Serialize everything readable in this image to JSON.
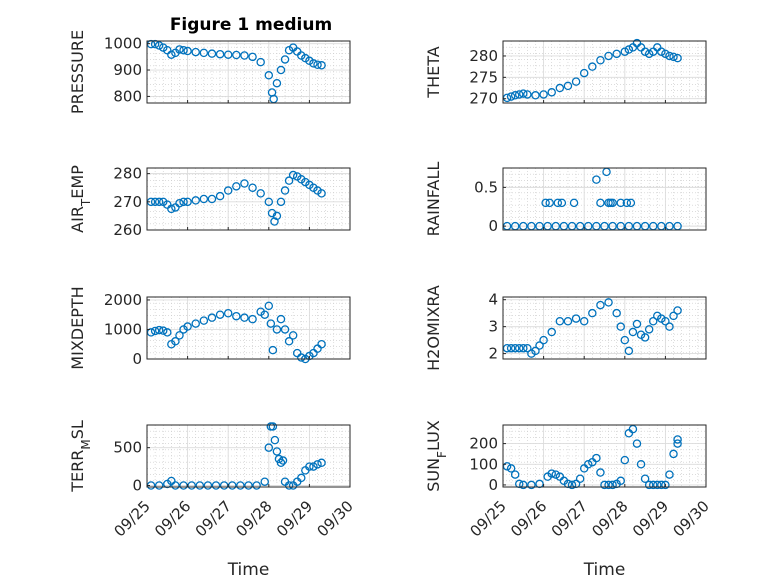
{
  "figure_title": "Figure 1 medium",
  "marker_color": "#0072BD",
  "chart_data": [
    {
      "type": "scatter",
      "ylabel": "PRESSURE",
      "ylim": [
        775,
        1010
      ],
      "yticks": [
        {
          "value": 800,
          "label": "800"
        },
        {
          "value": 900,
          "label": "900"
        },
        {
          "value": 1000,
          "label": "1000"
        }
      ],
      "xlim": [
        0,
        5
      ],
      "xticks": [
        {
          "value": 0,
          "label": "09/25"
        },
        {
          "value": 1,
          "label": "09/26"
        },
        {
          "value": 2,
          "label": "09/27"
        },
        {
          "value": 3,
          "label": "09/28"
        },
        {
          "value": 4,
          "label": "09/29"
        },
        {
          "value": 5,
          "label": "09/30"
        }
      ],
      "xlabel": "",
      "grid": true,
      "series": [
        {
          "x": [
            0.1,
            0.2,
            0.3,
            0.4,
            0.5,
            0.6,
            0.7,
            0.8,
            0.9,
            1.0,
            1.2,
            1.4,
            1.6,
            1.8,
            2.0,
            2.2,
            2.4,
            2.6,
            2.8,
            3.0,
            3.08,
            3.12,
            3.2,
            3.3,
            3.4,
            3.5,
            3.6,
            3.7,
            3.8,
            3.9,
            4.0,
            4.1,
            4.2,
            4.3
          ],
          "y": [
            998,
            998,
            993,
            985,
            975,
            958,
            965,
            978,
            975,
            972,
            968,
            965,
            962,
            960,
            958,
            957,
            955,
            950,
            930,
            880,
            815,
            790,
            850,
            900,
            940,
            975,
            985,
            970,
            955,
            945,
            935,
            925,
            920,
            918
          ]
        }
      ]
    },
    {
      "type": "scatter",
      "ylabel": "THETA",
      "ylim": [
        269,
        283.5
      ],
      "yticks": [
        {
          "value": 270,
          "label": "270"
        },
        {
          "value": 275,
          "label": "275"
        },
        {
          "value": 280,
          "label": "280"
        }
      ],
      "xlim": [
        0,
        5
      ],
      "xticks": [
        {
          "value": 0,
          "label": "09/25"
        },
        {
          "value": 1,
          "label": "09/26"
        },
        {
          "value": 2,
          "label": "09/27"
        },
        {
          "value": 3,
          "label": "09/28"
        },
        {
          "value": 4,
          "label": "09/29"
        },
        {
          "value": 5,
          "label": "09/30"
        }
      ],
      "xlabel": "",
      "grid": true,
      "series": [
        {
          "x": [
            0.1,
            0.2,
            0.3,
            0.4,
            0.5,
            0.6,
            0.8,
            1.0,
            1.2,
            1.4,
            1.6,
            1.8,
            2.0,
            2.2,
            2.4,
            2.6,
            2.8,
            3.0,
            3.1,
            3.2,
            3.3,
            3.4,
            3.5,
            3.6,
            3.7,
            3.8,
            3.9,
            4.0,
            4.1,
            4.2,
            4.3
          ],
          "y": [
            270.2,
            270.5,
            270.8,
            271,
            271.2,
            271,
            270.8,
            271,
            271.5,
            272.5,
            273,
            274,
            276,
            277.5,
            279,
            280,
            280.5,
            281,
            281.5,
            282,
            283,
            282,
            281,
            280.5,
            281,
            282,
            281,
            280.5,
            280,
            279.8,
            279.5
          ]
        }
      ]
    },
    {
      "type": "scatter",
      "ylabel": "AIR_TEMP",
      "ylim": [
        260,
        282
      ],
      "yticks": [
        {
          "value": 260,
          "label": "260"
        },
        {
          "value": 270,
          "label": "270"
        },
        {
          "value": 280,
          "label": "280"
        }
      ],
      "xlim": [
        0,
        5
      ],
      "xticks": [
        {
          "value": 0,
          "label": "09/25"
        },
        {
          "value": 1,
          "label": "09/26"
        },
        {
          "value": 2,
          "label": "09/27"
        },
        {
          "value": 3,
          "label": "09/28"
        },
        {
          "value": 4,
          "label": "09/29"
        },
        {
          "value": 5,
          "label": "09/30"
        }
      ],
      "xlabel": "",
      "grid": true,
      "series": [
        {
          "x": [
            0.1,
            0.2,
            0.3,
            0.4,
            0.5,
            0.6,
            0.7,
            0.8,
            0.9,
            1.0,
            1.2,
            1.4,
            1.6,
            1.8,
            2.0,
            2.2,
            2.4,
            2.6,
            2.8,
            3.0,
            3.08,
            3.14,
            3.2,
            3.3,
            3.4,
            3.5,
            3.6,
            3.7,
            3.8,
            3.9,
            4.0,
            4.1,
            4.2,
            4.3
          ],
          "y": [
            270,
            270,
            270,
            270,
            269,
            267.5,
            268,
            269.5,
            270,
            270,
            270.5,
            271,
            271,
            272,
            274,
            275.5,
            276.5,
            275,
            273,
            270,
            266,
            263,
            265,
            270,
            274,
            277.5,
            279.5,
            279,
            278,
            277,
            276,
            275,
            274,
            273
          ]
        }
      ]
    },
    {
      "type": "scatter",
      "ylabel": "RAINFALL",
      "ylim": [
        -0.05,
        0.75
      ],
      "yticks": [
        {
          "value": 0,
          "label": "0"
        },
        {
          "value": 0.5,
          "label": "0.5"
        }
      ],
      "xlim": [
        0,
        5
      ],
      "xticks": [
        {
          "value": 0,
          "label": "09/25"
        },
        {
          "value": 1,
          "label": "09/26"
        },
        {
          "value": 2,
          "label": "09/27"
        },
        {
          "value": 3,
          "label": "09/28"
        },
        {
          "value": 4,
          "label": "09/29"
        },
        {
          "value": 5,
          "label": "09/30"
        }
      ],
      "xlabel": "",
      "grid": true,
      "series": [
        {
          "x": [
            0.1,
            0.3,
            0.5,
            0.7,
            0.9,
            1.1,
            1.3,
            1.5,
            1.7,
            1.9,
            2.1,
            2.3,
            2.5,
            2.7,
            2.9,
            3.1,
            3.3,
            3.5,
            3.7,
            3.9,
            4.1,
            4.3,
            1.05,
            1.15,
            1.35,
            1.45,
            1.75,
            2.3,
            2.4,
            2.55,
            2.6,
            2.65,
            2.7,
            2.9,
            3.05,
            3.15
          ],
          "y": [
            0,
            0,
            0,
            0,
            0,
            0,
            0,
            0,
            0,
            0,
            0,
            0,
            0,
            0,
            0,
            0,
            0,
            0,
            0,
            0,
            0,
            0,
            0.3,
            0.3,
            0.3,
            0.3,
            0.3,
            0.6,
            0.3,
            0.7,
            0.3,
            0.3,
            0.3,
            0.3,
            0.3,
            0.3
          ]
        }
      ]
    },
    {
      "type": "scatter",
      "ylabel": "MIXDEPTH",
      "ylim": [
        0,
        2100
      ],
      "yticks": [
        {
          "value": 0,
          "label": "0"
        },
        {
          "value": 1000,
          "label": "1000"
        },
        {
          "value": 2000,
          "label": "2000"
        }
      ],
      "xlim": [
        0,
        5
      ],
      "xticks": [
        {
          "value": 0,
          "label": "09/25"
        },
        {
          "value": 1,
          "label": "09/26"
        },
        {
          "value": 2,
          "label": "09/27"
        },
        {
          "value": 3,
          "label": "09/28"
        },
        {
          "value": 4,
          "label": "09/29"
        },
        {
          "value": 5,
          "label": "09/30"
        }
      ],
      "xlabel": "",
      "grid": true,
      "series": [
        {
          "x": [
            0.1,
            0.2,
            0.3,
            0.4,
            0.5,
            0.6,
            0.7,
            0.8,
            0.9,
            1.0,
            1.2,
            1.4,
            1.6,
            1.8,
            2.0,
            2.2,
            2.4,
            2.6,
            2.8,
            2.9,
            3.0,
            3.05,
            3.1,
            3.2,
            3.3,
            3.4,
            3.5,
            3.6,
            3.7,
            3.8,
            3.9,
            4.0,
            4.1,
            4.2,
            4.3
          ],
          "y": [
            900,
            950,
            980,
            960,
            900,
            500,
            600,
            800,
            1000,
            1100,
            1200,
            1300,
            1400,
            1500,
            1550,
            1450,
            1400,
            1350,
            1600,
            1500,
            1800,
            1200,
            300,
            1000,
            1350,
            1000,
            600,
            800,
            200,
            50,
            0,
            100,
            200,
            350,
            500
          ]
        }
      ]
    },
    {
      "type": "scatter",
      "ylabel": "H2OMIXRA",
      "ylim": [
        1.8,
        4.1
      ],
      "yticks": [
        {
          "value": 2,
          "label": "2"
        },
        {
          "value": 3,
          "label": "3"
        },
        {
          "value": 4,
          "label": "4"
        }
      ],
      "xlim": [
        0,
        5
      ],
      "xticks": [
        {
          "value": 0,
          "label": "09/25"
        },
        {
          "value": 1,
          "label": "09/26"
        },
        {
          "value": 2,
          "label": "09/27"
        },
        {
          "value": 3,
          "label": "09/28"
        },
        {
          "value": 4,
          "label": "09/29"
        },
        {
          "value": 5,
          "label": "09/30"
        }
      ],
      "xlabel": "",
      "grid": true,
      "series": [
        {
          "x": [
            0.1,
            0.2,
            0.3,
            0.4,
            0.5,
            0.6,
            0.7,
            0.8,
            0.9,
            1.0,
            1.2,
            1.4,
            1.6,
            1.8,
            2.0,
            2.2,
            2.4,
            2.6,
            2.8,
            2.9,
            3.0,
            3.1,
            3.2,
            3.3,
            3.4,
            3.5,
            3.6,
            3.7,
            3.8,
            3.9,
            4.0,
            4.1,
            4.2,
            4.3
          ],
          "y": [
            2.2,
            2.2,
            2.2,
            2.2,
            2.2,
            2.2,
            2.0,
            2.1,
            2.3,
            2.5,
            2.8,
            3.2,
            3.2,
            3.3,
            3.2,
            3.5,
            3.8,
            3.9,
            3.5,
            3.0,
            2.5,
            2.1,
            2.8,
            3.1,
            2.7,
            2.6,
            2.9,
            3.2,
            3.4,
            3.3,
            3.2,
            3.0,
            3.4,
            3.6
          ]
        }
      ]
    },
    {
      "type": "scatter",
      "ylabel": "TERR_MSL",
      "ylim": [
        -20,
        800
      ],
      "yticks": [
        {
          "value": 0,
          "label": "0"
        },
        {
          "value": 500,
          "label": "500"
        }
      ],
      "xlim": [
        0,
        5
      ],
      "xticks": [
        {
          "value": 0,
          "label": "09/25"
        },
        {
          "value": 1,
          "label": "09/26"
        },
        {
          "value": 2,
          "label": "09/27"
        },
        {
          "value": 3,
          "label": "09/28"
        },
        {
          "value": 4,
          "label": "09/29"
        },
        {
          "value": 5,
          "label": "09/30"
        }
      ],
      "xlabel": "Time",
      "grid": true,
      "series": [
        {
          "x": [
            0.1,
            0.3,
            0.5,
            0.6,
            0.7,
            0.9,
            1.1,
            1.3,
            1.5,
            1.7,
            1.9,
            2.1,
            2.3,
            2.5,
            2.7,
            2.9,
            3.0,
            3.05,
            3.1,
            3.15,
            3.2,
            3.25,
            3.3,
            3.35,
            3.4,
            3.5,
            3.6,
            3.7,
            3.8,
            3.9,
            4.0,
            4.1,
            4.2,
            4.3
          ],
          "y": [
            0,
            0,
            20,
            60,
            0,
            0,
            0,
            0,
            0,
            0,
            0,
            0,
            0,
            0,
            0,
            50,
            500,
            780,
            780,
            600,
            450,
            350,
            300,
            330,
            50,
            0,
            0,
            50,
            100,
            200,
            250,
            250,
            280,
            300
          ]
        }
      ]
    },
    {
      "type": "scatter",
      "ylabel": "SUN_FLUX",
      "ylim": [
        -10,
        290
      ],
      "yticks": [
        {
          "value": 0,
          "label": "0"
        },
        {
          "value": 100,
          "label": "100"
        },
        {
          "value": 200,
          "label": "200"
        }
      ],
      "xlim": [
        0,
        5
      ],
      "xticks": [
        {
          "value": 0,
          "label": "09/25"
        },
        {
          "value": 1,
          "label": "09/26"
        },
        {
          "value": 2,
          "label": "09/27"
        },
        {
          "value": 3,
          "label": "09/28"
        },
        {
          "value": 4,
          "label": "09/29"
        },
        {
          "value": 5,
          "label": "09/30"
        }
      ],
      "xlabel": "Time",
      "grid": true,
      "series": [
        {
          "x": [
            0.1,
            0.2,
            0.3,
            0.4,
            0.5,
            0.7,
            0.9,
            1.1,
            1.2,
            1.3,
            1.4,
            1.5,
            1.6,
            1.7,
            1.8,
            1.9,
            2.0,
            2.1,
            2.2,
            2.3,
            2.4,
            2.5,
            2.6,
            2.7,
            2.8,
            2.9,
            3.0,
            3.1,
            3.2,
            3.3,
            3.4,
            3.5,
            3.6,
            3.7,
            3.8,
            3.9,
            4.0,
            4.1,
            4.2,
            4.3,
            4.3
          ],
          "y": [
            90,
            80,
            50,
            5,
            0,
            0,
            5,
            40,
            55,
            50,
            40,
            20,
            5,
            0,
            5,
            30,
            80,
            100,
            110,
            130,
            60,
            0,
            0,
            0,
            5,
            20,
            120,
            250,
            270,
            200,
            100,
            30,
            0,
            0,
            0,
            0,
            0,
            50,
            150,
            200,
            220
          ]
        }
      ]
    }
  ]
}
